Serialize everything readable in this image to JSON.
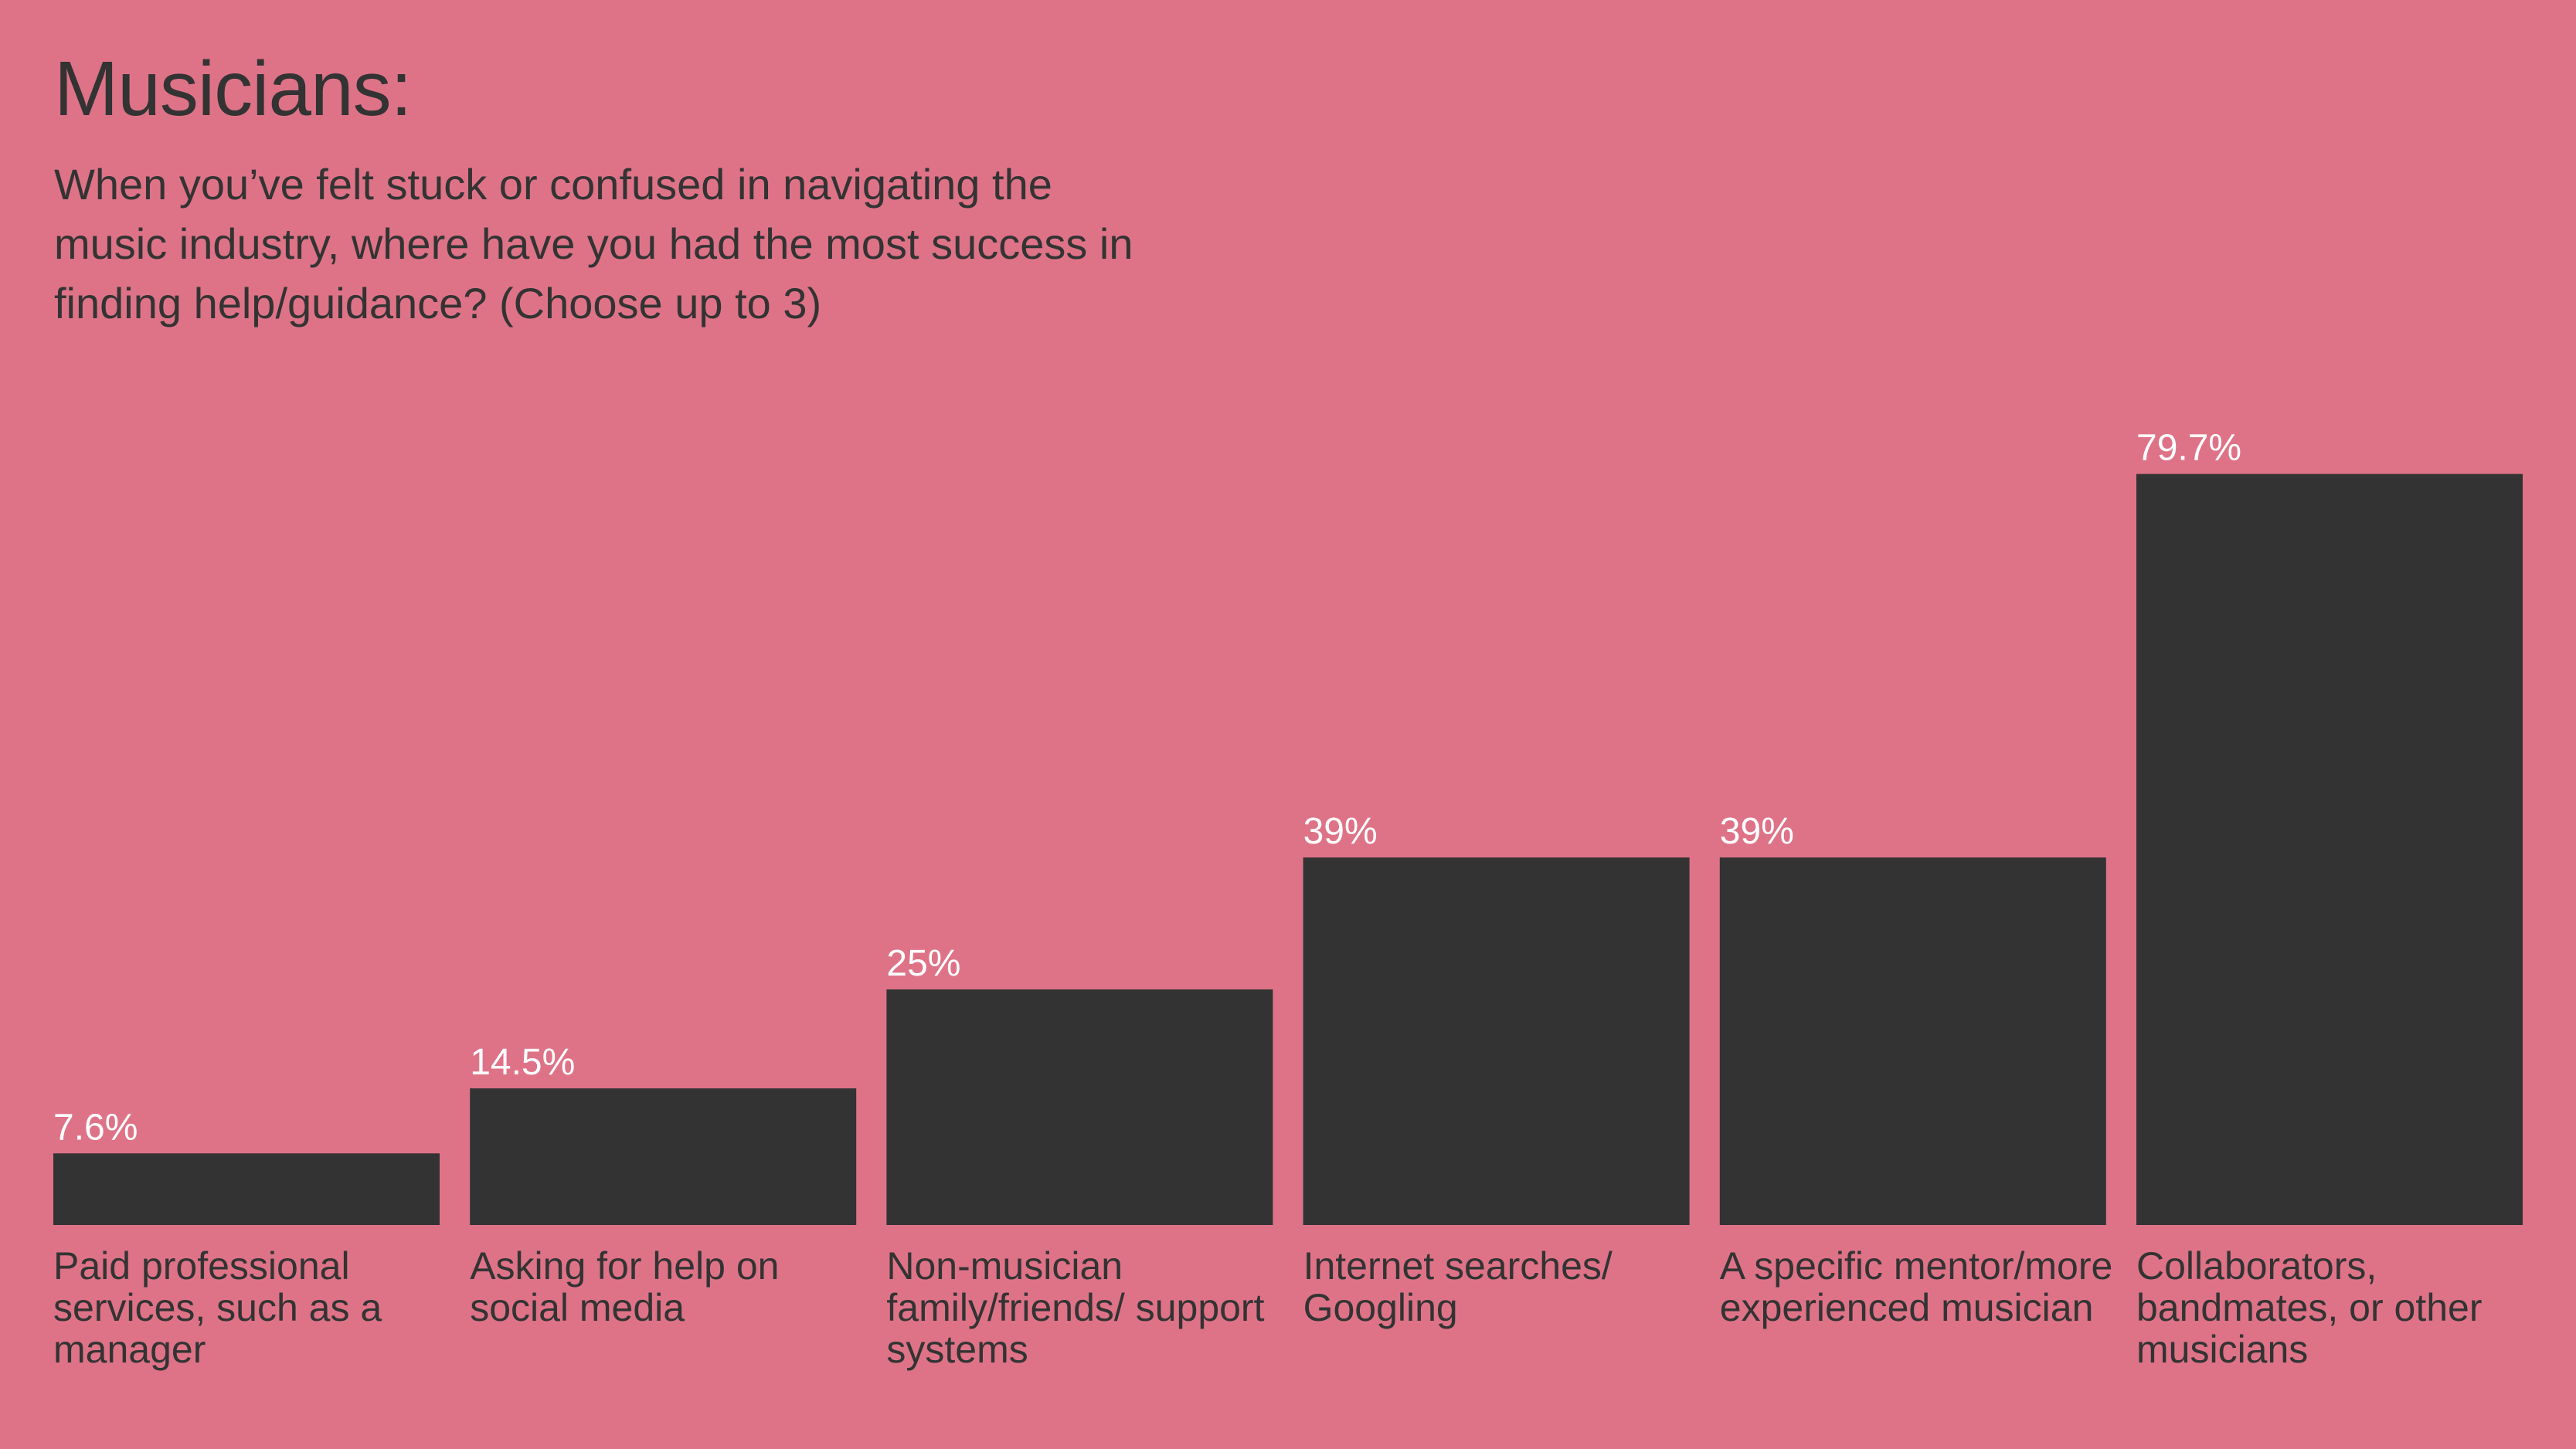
{
  "title": "Musicians:",
  "subtitle": "When you’ve felt stuck or confused in navigating the music industry, where have you had the most success in finding help/guidance? (Choose up to 3)",
  "colors": {
    "background": "#de7388",
    "bar": "#333333",
    "value_label": "#ffffff",
    "text": "#333333"
  },
  "chart_data": {
    "type": "bar",
    "title": "Musicians:",
    "subtitle": "When you’ve felt stuck or confused in navigating the music industry, where have you had the most success in finding help/guidance? (Choose up to 3)",
    "categories": [
      "Paid professional services, such as a manager",
      "Asking for help on social media",
      "Non-musician family/friends/ support systems",
      "Internet searches/ Googling",
      "A specific mentor/more experienced musician",
      "Collaborators, bandmates, or other musicians"
    ],
    "values": [
      7.6,
      14.5,
      25,
      39,
      39,
      79.7
    ],
    "value_labels": [
      "7.6%",
      "14.5%",
      "25%",
      "39%",
      "39%",
      "79.7%"
    ],
    "xlabel": "",
    "ylabel": "",
    "ylim": [
      0,
      100
    ],
    "grid": false,
    "legend": "none"
  }
}
